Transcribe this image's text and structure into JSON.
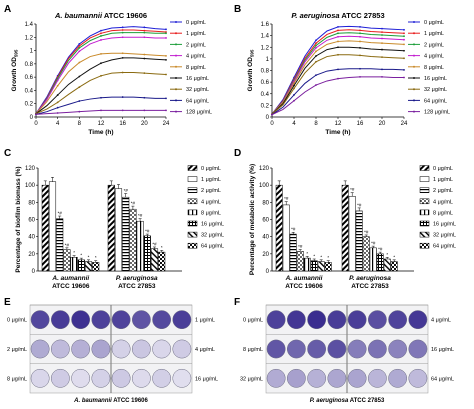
{
  "panels": {
    "A": "A",
    "B": "B",
    "C": "C",
    "D": "D",
    "E": "E",
    "F": "F"
  },
  "chart_data": [
    {
      "id": "A",
      "type": "line",
      "title": "A. baumannii ATCC 19606",
      "title_italic": "A. baumannii",
      "title_plain": " ATCC 19606",
      "xlabel": "Time (h)",
      "ylabel": "Growth OD595",
      "ylabel_main": "Growth OD",
      "ylabel_sub": "595",
      "x": [
        0,
        2,
        4,
        6,
        8,
        10,
        12,
        14,
        16,
        18,
        20,
        22,
        24
      ],
      "xticks": [
        "0",
        "4",
        "8",
        "12",
        "16",
        "20",
        "24"
      ],
      "yticks": [
        "0",
        "0.2",
        "0.4",
        "0.6",
        "0.8",
        "1",
        "1.2",
        "1.4"
      ],
      "xlim": [
        0,
        24
      ],
      "ylim": [
        0,
        1.4
      ],
      "legend_position": "right",
      "series": [
        {
          "name": "0 μg/mL",
          "color": "#1f1fd6",
          "values": [
            0.05,
            0.3,
            0.62,
            0.9,
            1.1,
            1.22,
            1.3,
            1.34,
            1.35,
            1.36,
            1.35,
            1.33,
            1.32
          ]
        },
        {
          "name": "1 μg/mL",
          "color": "#e81d1d",
          "values": [
            0.05,
            0.28,
            0.6,
            0.88,
            1.07,
            1.19,
            1.26,
            1.3,
            1.31,
            1.31,
            1.3,
            1.29,
            1.28
          ]
        },
        {
          "name": "2 μg/mL",
          "color": "#1d9e3a",
          "values": [
            0.05,
            0.27,
            0.58,
            0.85,
            1.04,
            1.15,
            1.22,
            1.26,
            1.27,
            1.27,
            1.27,
            1.26,
            1.26
          ]
        },
        {
          "name": "4 μg/mL",
          "color": "#c21dd0",
          "values": [
            0.05,
            0.26,
            0.55,
            0.81,
            0.99,
            1.1,
            1.16,
            1.19,
            1.2,
            1.2,
            1.2,
            1.19,
            1.19
          ]
        },
        {
          "name": "8 μg/mL",
          "color": "#c98a2a",
          "values": [
            0.05,
            0.23,
            0.47,
            0.68,
            0.82,
            0.91,
            0.95,
            0.96,
            0.96,
            0.95,
            0.94,
            0.93,
            0.92
          ]
        },
        {
          "name": "16 μg/mL",
          "color": "#111111",
          "values": [
            0.05,
            0.17,
            0.33,
            0.49,
            0.61,
            0.72,
            0.81,
            0.86,
            0.89,
            0.89,
            0.88,
            0.87,
            0.86
          ]
        },
        {
          "name": "32 μg/mL",
          "color": "#8a6a10",
          "values": [
            0.05,
            0.12,
            0.22,
            0.34,
            0.45,
            0.55,
            0.62,
            0.66,
            0.67,
            0.67,
            0.66,
            0.65,
            0.64
          ]
        },
        {
          "name": "64 μg/mL",
          "color": "#1a1a8a",
          "values": [
            0.04,
            0.08,
            0.14,
            0.19,
            0.24,
            0.27,
            0.29,
            0.3,
            0.3,
            0.3,
            0.29,
            0.28,
            0.28
          ]
        },
        {
          "name": "128 μg/mL",
          "color": "#7a1f9e",
          "values": [
            0.04,
            0.05,
            0.06,
            0.07,
            0.08,
            0.09,
            0.1,
            0.1,
            0.1,
            0.1,
            0.1,
            0.1,
            0.1
          ]
        }
      ]
    },
    {
      "id": "B",
      "type": "line",
      "title": "P. aeruginosa ATCC 27853",
      "title_italic": "P. aeruginosa",
      "title_plain": " ATCC 27853",
      "xlabel": "Time (h)",
      "ylabel": "Growth OD595",
      "ylabel_main": "Growth OD",
      "ylabel_sub": "595",
      "x": [
        0,
        2,
        4,
        6,
        8,
        10,
        12,
        14,
        16,
        18,
        20,
        22,
        24
      ],
      "xticks": [
        "0",
        "4",
        "8",
        "12",
        "16",
        "20",
        "24"
      ],
      "yticks": [
        "0",
        "0.2",
        "0.4",
        "0.6",
        "0.8",
        "1",
        "1.2",
        "1.4",
        "1.6"
      ],
      "xlim": [
        0,
        24
      ],
      "ylim": [
        0,
        1.6
      ],
      "legend_position": "right",
      "series": [
        {
          "name": "0 μg/mL",
          "color": "#1f1fd6",
          "values": [
            0.05,
            0.3,
            0.68,
            1.05,
            1.32,
            1.48,
            1.55,
            1.56,
            1.55,
            1.53,
            1.52,
            1.51,
            1.5
          ]
        },
        {
          "name": "1 μg/mL",
          "color": "#e81d1d",
          "values": [
            0.05,
            0.28,
            0.65,
            1.01,
            1.27,
            1.42,
            1.49,
            1.5,
            1.49,
            1.47,
            1.46,
            1.45,
            1.44
          ]
        },
        {
          "name": "2 μg/mL",
          "color": "#1d9e3a",
          "values": [
            0.05,
            0.27,
            0.63,
            0.98,
            1.23,
            1.37,
            1.44,
            1.45,
            1.44,
            1.42,
            1.41,
            1.4,
            1.39
          ]
        },
        {
          "name": "4 μg/mL",
          "color": "#c21dd0",
          "values": [
            0.05,
            0.26,
            0.61,
            0.95,
            1.19,
            1.32,
            1.38,
            1.39,
            1.38,
            1.36,
            1.35,
            1.34,
            1.33
          ]
        },
        {
          "name": "8 μg/mL",
          "color": "#c98a2a",
          "values": [
            0.05,
            0.25,
            0.58,
            0.9,
            1.13,
            1.25,
            1.3,
            1.31,
            1.3,
            1.28,
            1.27,
            1.26,
            1.25
          ]
        },
        {
          "name": "16 μg/mL",
          "color": "#111111",
          "values": [
            0.05,
            0.23,
            0.54,
            0.84,
            1.05,
            1.16,
            1.2,
            1.2,
            1.19,
            1.17,
            1.16,
            1.15,
            1.14
          ]
        },
        {
          "name": "32 μg/mL",
          "color": "#8a6a10",
          "values": [
            0.05,
            0.21,
            0.49,
            0.76,
            0.95,
            1.04,
            1.07,
            1.07,
            1.06,
            1.04,
            1.03,
            1.02,
            1.01
          ]
        },
        {
          "name": "64 μg/mL",
          "color": "#1a1a8a",
          "values": [
            0.04,
            0.17,
            0.38,
            0.58,
            0.72,
            0.79,
            0.82,
            0.83,
            0.83,
            0.83,
            0.82,
            0.82,
            0.81
          ]
        },
        {
          "name": "128 μg/mL",
          "color": "#7a1f9e",
          "values": [
            0.04,
            0.13,
            0.28,
            0.43,
            0.55,
            0.62,
            0.66,
            0.68,
            0.69,
            0.69,
            0.69,
            0.68,
            0.68
          ]
        }
      ]
    },
    {
      "id": "C",
      "type": "bar",
      "ylabel": "Percentage of biofilm biomass (%)",
      "yticks": [
        "0",
        "20",
        "40",
        "60",
        "80",
        "100",
        "120"
      ],
      "ylim": [
        0,
        120
      ],
      "legend_position": "right",
      "groups": [
        {
          "label1": "A. aumannii",
          "label2": "ATCC 19606"
        },
        {
          "label1": "P. aeruginosa",
          "label2": "ATCC 27853"
        }
      ],
      "series": [
        {
          "name": "0 μg/mL",
          "values": [
            100,
            100
          ],
          "sig": [
            "",
            ""
          ]
        },
        {
          "name": "1 μg/mL",
          "values": [
            104,
            96
          ],
          "sig": [
            "",
            ""
          ]
        },
        {
          "name": "2 μg/mL",
          "values": [
            61,
            86
          ],
          "sig": [
            "*#",
            "*#"
          ]
        },
        {
          "name": "4 μg/mL",
          "values": [
            25,
            72
          ],
          "sig": [
            "*#",
            "*#"
          ]
        },
        {
          "name": "8 μg/mL",
          "values": [
            16,
            58
          ],
          "sig": [
            "*",
            "*#"
          ]
        },
        {
          "name": "16 μg/mL",
          "values": [
            13,
            41
          ],
          "sig": [
            "*",
            "*#"
          ]
        },
        {
          "name": "32 μg/mL",
          "values": [
            11,
            26
          ],
          "sig": [
            "*",
            "*#"
          ]
        },
        {
          "name": "64 μg/mL",
          "values": [
            10,
            22
          ],
          "sig": [
            "*",
            "*"
          ]
        }
      ]
    },
    {
      "id": "D",
      "type": "bar",
      "ylabel": "Percentage of metabolic activity (%)",
      "yticks": [
        "0",
        "20",
        "40",
        "60",
        "80",
        "100",
        "120"
      ],
      "ylim": [
        0,
        120
      ],
      "legend_position": "right",
      "groups": [
        {
          "label1": "A. aumannii",
          "label2": "ATCC 19606"
        },
        {
          "label1": "P. aeruginosa",
          "label2": "ATCC 27853"
        }
      ],
      "series": [
        {
          "name": "0 μg/mL",
          "values": [
            100,
            100
          ],
          "sig": [
            "",
            ""
          ]
        },
        {
          "name": "1 μg/mL",
          "values": [
            77,
            87
          ],
          "sig": [
            "*#",
            "*#"
          ]
        },
        {
          "name": "2 μg/mL",
          "values": [
            43,
            70
          ],
          "sig": [
            "*#",
            "*#"
          ]
        },
        {
          "name": "4 μg/mL",
          "values": [
            23,
            40
          ],
          "sig": [
            "*#",
            "*#"
          ]
        },
        {
          "name": "8 μg/mL",
          "values": [
            15,
            27
          ],
          "sig": [
            "*",
            "*#"
          ]
        },
        {
          "name": "16 μg/mL",
          "values": [
            12,
            20
          ],
          "sig": [
            "*",
            "*#"
          ]
        },
        {
          "name": "32 μg/mL",
          "values": [
            11,
            14
          ],
          "sig": [
            "*",
            "*"
          ]
        },
        {
          "name": "64 μg/mL",
          "values": [
            10,
            11
          ],
          "sig": [
            "*",
            "*"
          ]
        }
      ]
    }
  ],
  "plates": {
    "E": {
      "caption_italic": "A. baumannii",
      "caption_plain": " ATCC 19606",
      "left_labels": [
        "0 μg/mL",
        "2 μg/mL",
        "8 μg/mL"
      ],
      "right_labels": [
        "1 μg/mL",
        "4 μg/mL",
        "16 μg/mL"
      ],
      "stain_left": [
        0.92,
        0.3,
        0.12
      ],
      "stain_right": [
        0.85,
        0.15,
        0.1
      ]
    },
    "F": {
      "caption_italic": "P. aeruginosa",
      "caption_plain": " ATCC 27853",
      "left_labels": [
        "0 μg/mL",
        "8 μg/mL",
        "32 μg/mL"
      ],
      "right_labels": [
        "4 μg/mL",
        "16 μg/mL",
        "64 μg/mL"
      ],
      "stain_left": [
        0.95,
        0.75,
        0.35
      ],
      "stain_right": [
        0.88,
        0.6,
        0.3
      ]
    }
  },
  "colors": {
    "plate_dark": "#3a2d8f",
    "plate_mid": "#7d74c4",
    "plate_light": "#e9e7f3"
  }
}
